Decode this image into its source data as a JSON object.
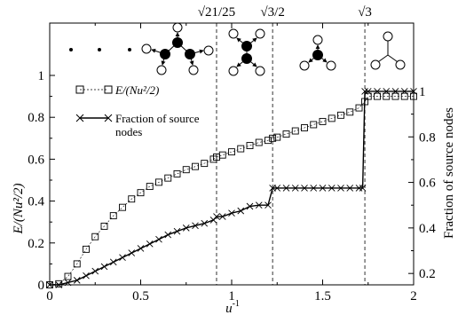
{
  "chart_data": {
    "type": "line",
    "x_axis": {
      "label_base": "u",
      "label_sup": "-1",
      "range": [
        0,
        2
      ],
      "ticks": [
        0,
        0.5,
        1,
        1.5,
        2
      ],
      "tick_labels": [
        "0",
        "0.5",
        "1",
        "1.5",
        "2"
      ]
    },
    "y_axis_left": {
      "label": "E/(Nu²/2)",
      "range": [
        0,
        1.25
      ],
      "ticks": [
        0,
        0.2,
        0.4,
        0.6,
        0.8,
        1
      ],
      "tick_labels": [
        "0",
        "0.2",
        "0.4",
        "0.6",
        "0.8",
        "1"
      ]
    },
    "y_axis_right": {
      "label": "Fraction of source nodes",
      "range": [
        0.15,
        1.3
      ],
      "ticks": [
        0.2,
        0.4,
        0.6,
        0.8,
        1
      ],
      "tick_labels": [
        "0.2",
        "0.4",
        "0.6",
        "0.8",
        "1"
      ]
    },
    "vertical_lines": [
      {
        "x": 0.917,
        "label": "√21/25"
      },
      {
        "x": 1.225,
        "label": "√3/2"
      },
      {
        "x": 1.732,
        "label": "√3"
      }
    ],
    "series": [
      {
        "name": "E/(Nu²/2)",
        "marker": "square",
        "axis": "left",
        "x": [
          0,
          0.05,
          0.1,
          0.15,
          0.2,
          0.25,
          0.3,
          0.35,
          0.4,
          0.45,
          0.5,
          0.55,
          0.6,
          0.65,
          0.7,
          0.75,
          0.8,
          0.85,
          0.9,
          0.917,
          0.95,
          1.0,
          1.05,
          1.1,
          1.15,
          1.2,
          1.225,
          1.25,
          1.3,
          1.35,
          1.4,
          1.45,
          1.5,
          1.55,
          1.6,
          1.65,
          1.7,
          1.732,
          1.75,
          1.8,
          1.85,
          1.9,
          1.95,
          2.0
        ],
        "y": [
          0,
          0.005,
          0.04,
          0.1,
          0.17,
          0.23,
          0.28,
          0.33,
          0.37,
          0.41,
          0.44,
          0.47,
          0.49,
          0.51,
          0.53,
          0.55,
          0.565,
          0.58,
          0.6,
          0.61,
          0.62,
          0.635,
          0.65,
          0.665,
          0.68,
          0.69,
          0.7,
          0.705,
          0.72,
          0.735,
          0.75,
          0.765,
          0.78,
          0.795,
          0.81,
          0.825,
          0.845,
          0.875,
          0.9,
          0.9,
          0.9,
          0.9,
          0.9,
          0.9
        ]
      },
      {
        "name": "Fraction of source nodes",
        "marker": "x",
        "axis": "right",
        "x": [
          0,
          0.05,
          0.1,
          0.15,
          0.2,
          0.25,
          0.3,
          0.35,
          0.4,
          0.45,
          0.5,
          0.55,
          0.6,
          0.65,
          0.7,
          0.75,
          0.8,
          0.85,
          0.9,
          0.917,
          0.95,
          1.0,
          1.05,
          1.1,
          1.15,
          1.2,
          1.225,
          1.25,
          1.3,
          1.35,
          1.4,
          1.45,
          1.5,
          1.55,
          1.6,
          1.65,
          1.7,
          1.72,
          1.732,
          1.75,
          1.8,
          1.85,
          1.9,
          1.95,
          2.0
        ],
        "y": [
          0.15,
          0.15,
          0.16,
          0.17,
          0.19,
          0.21,
          0.23,
          0.25,
          0.27,
          0.29,
          0.31,
          0.33,
          0.35,
          0.37,
          0.385,
          0.4,
          0.41,
          0.42,
          0.435,
          0.45,
          0.45,
          0.465,
          0.475,
          0.495,
          0.5,
          0.5,
          0.575,
          0.575,
          0.575,
          0.575,
          0.575,
          0.575,
          0.575,
          0.575,
          0.575,
          0.575,
          0.575,
          0.575,
          1.0,
          1.0,
          1.0,
          1.0,
          1.0,
          1.0,
          1.0
        ]
      }
    ],
    "legend": {
      "placement": "top-left",
      "entries": [
        {
          "label": "E/(Nu²/2)",
          "marker": "square"
        },
        {
          "label_line1": "Fraction of source",
          "label_line2": "nodes",
          "marker": "x"
        }
      ]
    }
  }
}
